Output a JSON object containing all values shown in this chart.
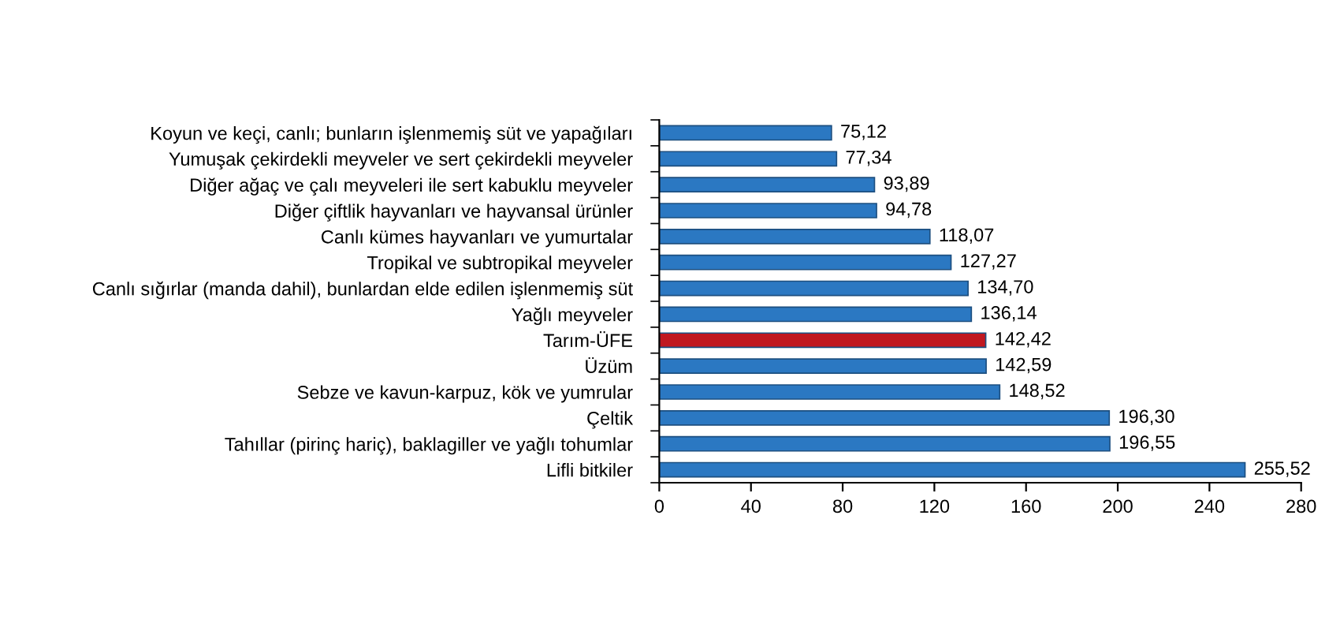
{
  "chart_data": {
    "type": "bar",
    "orientation": "horizontal",
    "categories": [
      "Koyun ve keçi, canlı; bunların işlenmemiş süt ve yapağıları",
      "Yumuşak çekirdekli meyveler ve sert çekirdekli meyveler",
      "Diğer ağaç ve çalı meyveleri ile sert kabuklu meyveler",
      "Diğer çiftlik hayvanları ve hayvansal ürünler",
      "Canlı kümes hayvanları ve yumurtalar",
      "Tropikal ve subtropikal meyveler",
      "Canlı sığırlar (manda dahil), bunlardan elde edilen işlenmemiş süt",
      "Yağlı meyveler",
      "Tarım-ÜFE",
      "Üzüm",
      "Sebze ve kavun-karpuz, kök ve yumrular",
      "Çeltik",
      "Tahıllar (pirinç hariç), baklagiller ve yağlı tohumlar",
      "Lifli bitkiler"
    ],
    "values": [
      75.12,
      77.34,
      93.89,
      94.78,
      118.07,
      127.27,
      134.7,
      136.14,
      142.42,
      142.59,
      148.52,
      196.3,
      196.55,
      255.52
    ],
    "value_labels": [
      "75,12",
      "77,34",
      "93,89",
      "94,78",
      "118,07",
      "127,27",
      "134,70",
      "136,14",
      "142,42",
      "142,59",
      "148,52",
      "196,30",
      "196,55",
      "255,52"
    ],
    "colors": [
      "#2b78c2",
      "#2b78c2",
      "#2b78c2",
      "#2b78c2",
      "#2b78c2",
      "#2b78c2",
      "#2b78c2",
      "#2b78c2",
      "#c01820",
      "#2b78c2",
      "#2b78c2",
      "#2b78c2",
      "#2b78c2",
      "#2b78c2"
    ],
    "xlim": [
      0,
      280
    ],
    "xticks": [
      0,
      40,
      80,
      120,
      160,
      200,
      240,
      280
    ],
    "grid": false,
    "legend": false
  }
}
